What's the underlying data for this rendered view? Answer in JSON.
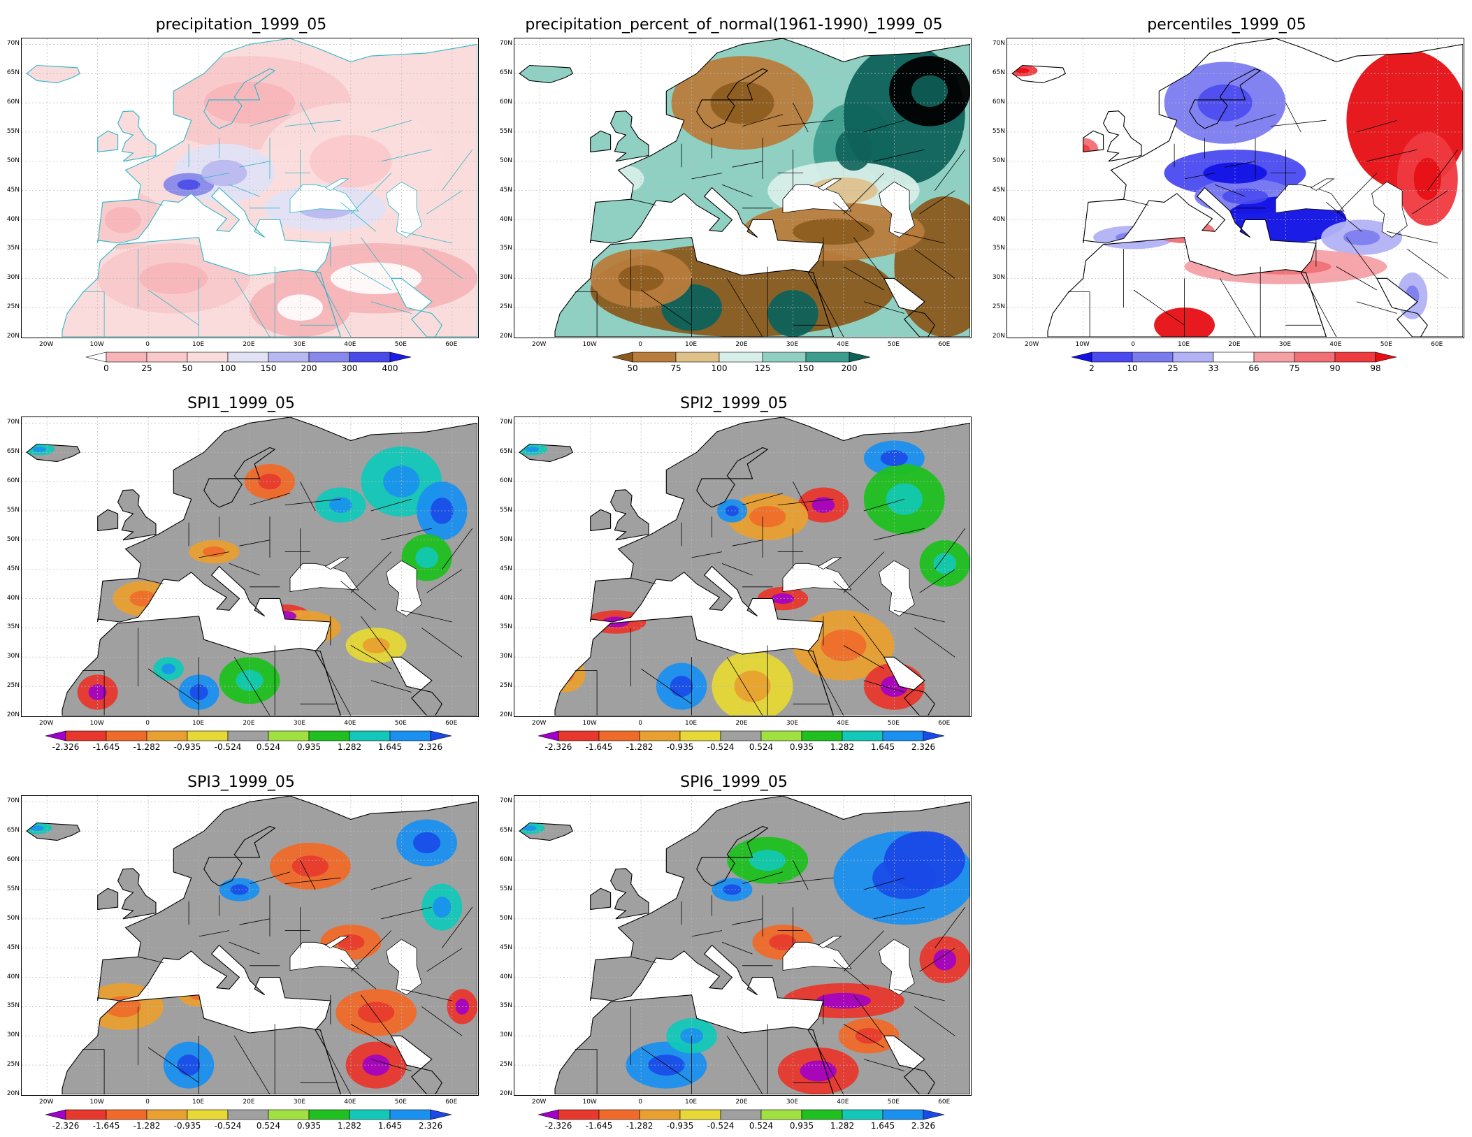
{
  "axes": {
    "lat_ticks": [
      "70N",
      "65N",
      "60N",
      "55N",
      "50N",
      "45N",
      "40N",
      "35N",
      "30N",
      "25N",
      "20N"
    ],
    "lon_ticks": [
      "20W",
      "10W",
      "0",
      "10E",
      "20E",
      "30E",
      "40E",
      "50E",
      "60E"
    ]
  },
  "panels": [
    {
      "id": "precip",
      "title": "precipitation_1999_05",
      "kind": "precip",
      "colorbar": {
        "labels": [
          "0",
          "25",
          "50",
          "100",
          "150",
          "200",
          "300",
          "400"
        ],
        "colors": [
          "#ffffff",
          "#f7b5b8",
          "#f9c8ca",
          "#fbdcdc",
          "#e2e2f5",
          "#b8b8f0",
          "#8888ea",
          "#4a4ae8",
          "#1a1ae6"
        ]
      }
    },
    {
      "id": "pct",
      "title": "precipitation_percent_of_normal(1961-1990)_1999_05",
      "kind": "pct",
      "colorbar": {
        "labels": [
          "50",
          "75",
          "100",
          "125",
          "150",
          "200"
        ],
        "colors": [
          "#8b5a1e",
          "#b87c3c",
          "#dfc088",
          "#d8efe9",
          "#8fd0c2",
          "#3e9e8e",
          "#0e625a"
        ]
      }
    },
    {
      "id": "perc",
      "title": "percentiles_1999_05",
      "kind": "perc",
      "colorbar": {
        "labels": [
          "2",
          "10",
          "25",
          "33",
          "66",
          "75",
          "90",
          "98"
        ],
        "colors": [
          "#1010e6",
          "#4a4af0",
          "#7b7bf0",
          "#b2b2f5",
          "#ffffff",
          "#f5a0a5",
          "#f07075",
          "#ef3a40",
          "#e60e14"
        ]
      }
    },
    {
      "id": "spi1",
      "title": "SPI1_1999_05",
      "kind": "spi",
      "colorbar": {
        "labels": [
          "-2.326",
          "-1.645",
          "-1.282",
          "-0.935",
          "-0.524",
          "0.524",
          "0.935",
          "1.282",
          "1.645",
          "2.326"
        ],
        "colors": [
          "#a000c8",
          "#e8382e",
          "#f06a2a",
          "#e8a030",
          "#e6d836",
          "#a0a0a0",
          "#a0e040",
          "#20c020",
          "#12c8b8",
          "#1a90f0",
          "#1a4ae8"
        ]
      }
    },
    {
      "id": "spi2",
      "title": "SPI2_1999_05",
      "kind": "spi",
      "colorbar": {
        "labels": [
          "-2.326",
          "-1.645",
          "-1.282",
          "-0.935",
          "-0.524",
          "0.524",
          "0.935",
          "1.282",
          "1.645",
          "2.326"
        ],
        "colors": [
          "#a000c8",
          "#e8382e",
          "#f06a2a",
          "#e8a030",
          "#e6d836",
          "#a0a0a0",
          "#a0e040",
          "#20c020",
          "#12c8b8",
          "#1a90f0",
          "#1a4ae8"
        ]
      }
    },
    {
      "id": "spi3",
      "title": "SPI3_1999_05",
      "kind": "spi",
      "colorbar": {
        "labels": [
          "-2.326",
          "-1.645",
          "-1.282",
          "-0.935",
          "-0.524",
          "0.524",
          "0.935",
          "1.282",
          "1.645",
          "2.326"
        ],
        "colors": [
          "#a000c8",
          "#e8382e",
          "#f06a2a",
          "#e8a030",
          "#e6d836",
          "#a0a0a0",
          "#a0e040",
          "#20c020",
          "#12c8b8",
          "#1a90f0",
          "#1a4ae8"
        ]
      }
    },
    {
      "id": "spi6",
      "title": "SPI6_1999_05",
      "kind": "spi",
      "colorbar": {
        "labels": [
          "-2.326",
          "-1.645",
          "-1.282",
          "-0.935",
          "-0.524",
          "0.524",
          "0.935",
          "1.282",
          "1.645",
          "2.326"
        ],
        "colors": [
          "#a000c8",
          "#e8382e",
          "#f06a2a",
          "#e8a030",
          "#e6d836",
          "#a0a0a0",
          "#a0e040",
          "#20c020",
          "#12c8b8",
          "#1a90f0",
          "#1a4ae8"
        ]
      }
    }
  ]
}
